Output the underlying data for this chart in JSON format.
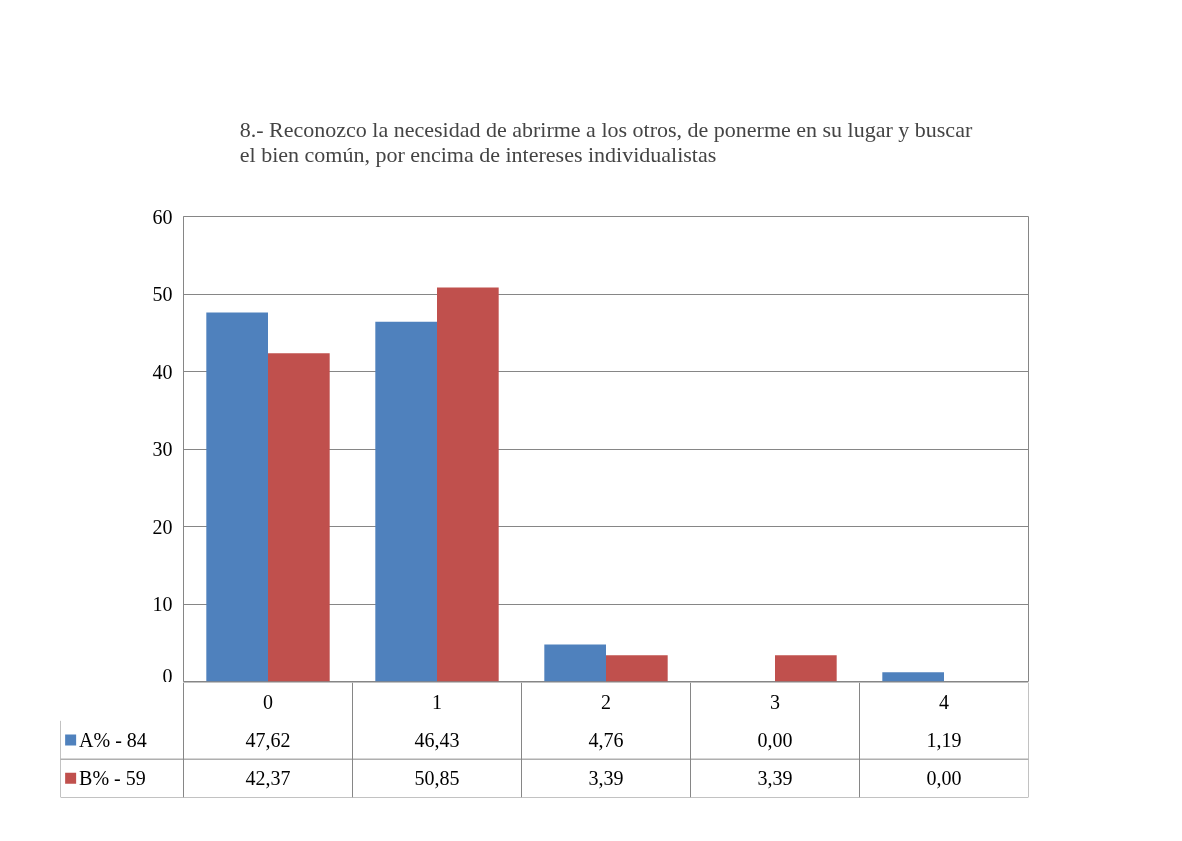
{
  "chart_data": {
    "type": "bar",
    "title": "8.- Reconozco la necesidad de abrirme a los otros, de ponerme en su lugar y buscar el bien común, por encima de intereses individualistas",
    "categories": [
      "0",
      "1",
      "2",
      "3",
      "4"
    ],
    "series": [
      {
        "name": "A% - 84",
        "color": "#4f81bd",
        "values": [
          47.62,
          46.43,
          4.76,
          0.0,
          1.19
        ],
        "value_labels": [
          "47,62",
          "46,43",
          "4,76",
          "0,00",
          "1,19"
        ]
      },
      {
        "name": "B% - 59",
        "color": "#c0504d",
        "values": [
          42.37,
          50.85,
          3.39,
          3.39,
          0.0
        ],
        "value_labels": [
          "42,37",
          "50,85",
          "3,39",
          "3,39",
          "0,00"
        ]
      }
    ],
    "legend": "bottom left",
    "ylim": [
      0,
      60
    ],
    "yticks": [
      0,
      10,
      20,
      30,
      40,
      50,
      60
    ],
    "grid": "y"
  }
}
